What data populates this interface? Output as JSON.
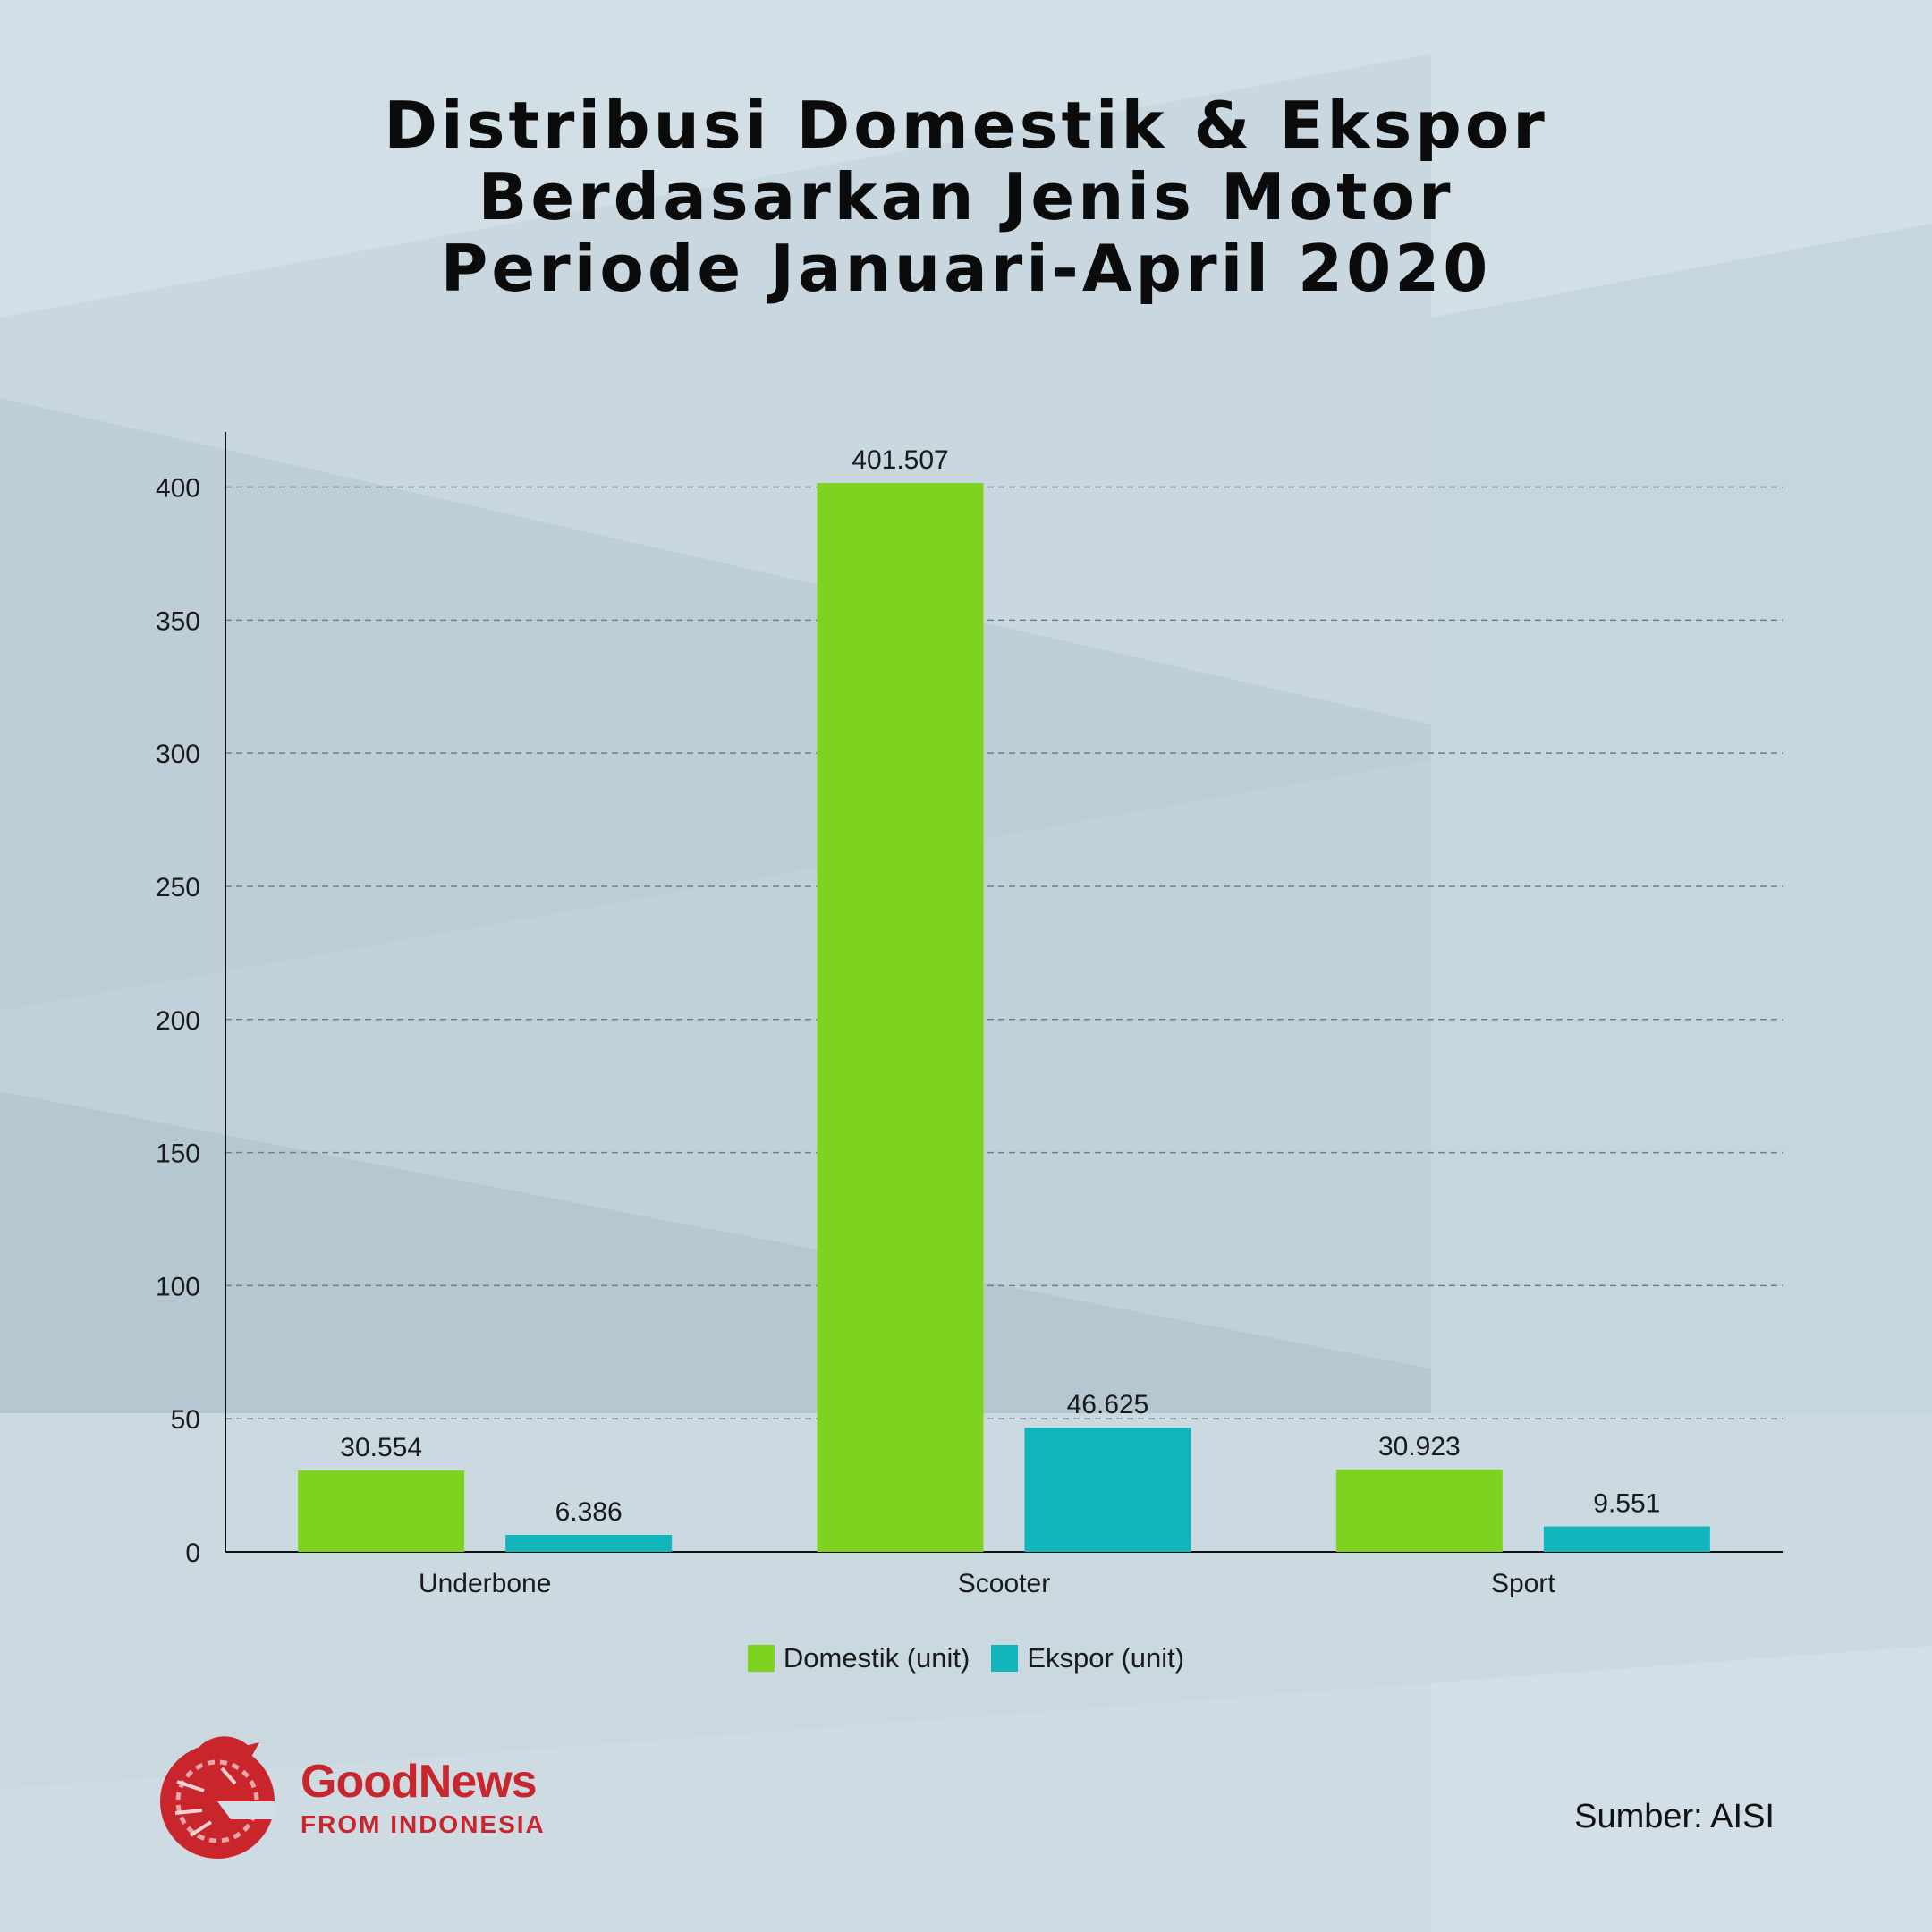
{
  "title_lines": [
    "Distribusi Domestik & Ekspor",
    "Berdasarkan Jenis Motor",
    "Periode Januari-April 2020"
  ],
  "colors": {
    "domestik": "#7ed321",
    "ekspor": "#12b5bb",
    "logo_red": "#c8262c"
  },
  "legend": {
    "domestik": "Domestik (unit)",
    "ekspor": "Ekspor (unit)"
  },
  "logo": {
    "icon": "garuda-logo-icon",
    "name": "GoodNews",
    "sub": "FROM INDONESIA"
  },
  "source": "Sumber: AISI",
  "chart_data": {
    "type": "bar",
    "categories": [
      "Underbone",
      "Scooter",
      "Sport"
    ],
    "series": [
      {
        "name": "Domestik (unit)",
        "values": [
          30.554,
          401.507,
          30.923
        ],
        "labels": [
          "30.554",
          "401.507",
          "30.923"
        ]
      },
      {
        "name": "Ekspor (unit)",
        "values": [
          6.386,
          46.625,
          9.551
        ],
        "labels": [
          "6.386",
          "46.625",
          "9.551"
        ]
      }
    ],
    "ylim": [
      0,
      420
    ],
    "yticks": [
      0,
      50,
      100,
      150,
      200,
      250,
      300,
      350,
      400
    ],
    "grid": true,
    "legend_position": "bottom"
  }
}
